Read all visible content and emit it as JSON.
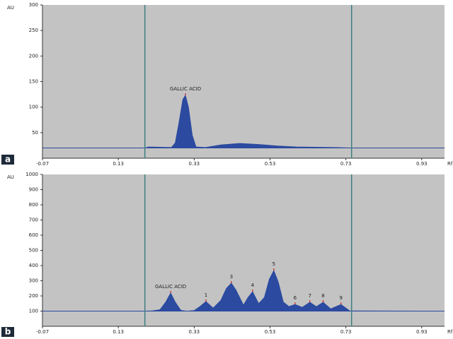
{
  "chart_data": [
    {
      "type": "area",
      "panel_label": "a",
      "ylabel": "AU",
      "xlabel": "Rf",
      "xlim": [
        -0.07,
        0.99
      ],
      "xticks": [
        -0.07,
        0.13,
        0.33,
        0.53,
        0.73,
        0.93
      ],
      "ylim": [
        0,
        300
      ],
      "yticks": [
        50,
        100,
        150,
        200,
        250,
        300
      ],
      "baseline": 20,
      "markers": [
        0.2,
        0.745
      ],
      "series": [
        {
          "color": "#2b4aa0",
          "x": [
            -0.07,
            0.2,
            0.21,
            0.27,
            0.28,
            0.29,
            0.3,
            0.307,
            0.315,
            0.325,
            0.335,
            0.36,
            0.4,
            0.45,
            0.5,
            0.55,
            0.6,
            0.7,
            0.75,
            0.99
          ],
          "values": [
            20,
            20,
            22,
            21,
            30,
            70,
            115,
            123,
            100,
            45,
            22,
            21,
            26,
            29,
            27,
            24,
            22,
            21,
            20,
            20
          ]
        }
      ],
      "annotations": [
        {
          "text": "GALLIC ACID",
          "x": 0.307,
          "y": 123
        }
      ]
    },
    {
      "type": "area",
      "panel_label": "b",
      "ylabel": "AU",
      "xlabel": "Rf",
      "xlim": [
        -0.07,
        0.99
      ],
      "xticks": [
        -0.07,
        0.13,
        0.33,
        0.53,
        0.73,
        0.93
      ],
      "ylim": [
        0,
        1000
      ],
      "yticks": [
        100,
        200,
        300,
        400,
        500,
        600,
        700,
        800,
        900,
        1000
      ],
      "baseline": 100,
      "markers": [
        0.2,
        0.745
      ],
      "series": [
        {
          "color": "#2b4aa0",
          "x": [
            -0.07,
            0.2,
            0.22,
            0.24,
            0.255,
            0.268,
            0.28,
            0.295,
            0.31,
            0.33,
            0.345,
            0.361,
            0.38,
            0.4,
            0.415,
            0.428,
            0.44,
            0.46,
            0.472,
            0.484,
            0.5,
            0.515,
            0.528,
            0.54,
            0.552,
            0.565,
            0.58,
            0.596,
            0.615,
            0.635,
            0.652,
            0.67,
            0.69,
            0.717,
            0.74,
            0.99
          ],
          "values": [
            100,
            100,
            102,
            110,
            160,
            219,
            160,
            105,
            100,
            104,
            130,
            163,
            120,
            170,
            250,
            284,
            240,
            140,
            190,
            228,
            150,
            190,
            310,
            367,
            290,
            160,
            130,
            144,
            125,
            158,
            130,
            158,
            115,
            144,
            102,
            100
          ]
        }
      ],
      "annotations": [
        {
          "text": "GALLIC ACID",
          "x": 0.268,
          "y": 219
        },
        {
          "text": "1",
          "x": 0.361,
          "y": 163
        },
        {
          "text": "3",
          "x": 0.428,
          "y": 284
        },
        {
          "text": "4",
          "x": 0.484,
          "y": 228
        },
        {
          "text": "5",
          "x": 0.54,
          "y": 367
        },
        {
          "text": "6",
          "x": 0.596,
          "y": 144
        },
        {
          "text": "7",
          "x": 0.635,
          "y": 158
        },
        {
          "text": "8",
          "x": 0.67,
          "y": 158
        },
        {
          "text": "9",
          "x": 0.717,
          "y": 144
        }
      ]
    }
  ]
}
